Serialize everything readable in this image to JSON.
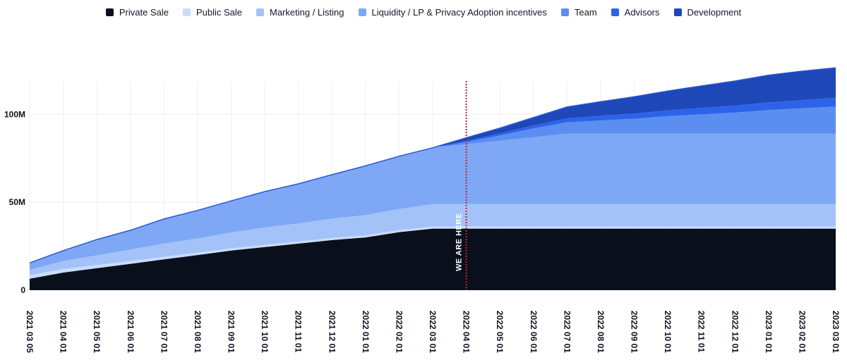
{
  "chart_data": {
    "type": "area",
    "stacked": true,
    "title": "",
    "xlabel": "",
    "ylabel": "",
    "ylim": [
      0,
      125000000
    ],
    "grid": true,
    "legend_position": "top-center",
    "y_ticks": [
      {
        "value": 0,
        "label": "0"
      },
      {
        "value": 50000000,
        "label": "50M"
      },
      {
        "value": 100000000,
        "label": "100M"
      }
    ],
    "x": [
      "2021 03 05",
      "2021 04 01",
      "2021 05 01",
      "2021 06 01",
      "2021 07 01",
      "2021 08 01",
      "2021 09 01",
      "2021 10 01",
      "2021 11 01",
      "2021 12 01",
      "2022 01 01",
      "2022 02 01",
      "2022 03 01",
      "2022 04 01",
      "2022 05 01",
      "2022 06 01",
      "2022 07 01",
      "2022 08 01",
      "2022 09 01",
      "2022 10 01",
      "2022 11 01",
      "2022 12 01",
      "2023 01 01",
      "2023 02 01",
      "2023 03 01"
    ],
    "series": [
      {
        "name": "Private Sale",
        "color": "#0a0f1c",
        "values": [
          6.5,
          10,
          12.5,
          15,
          17.5,
          20,
          22.5,
          24.5,
          26.5,
          28.5,
          30,
          33,
          35,
          35,
          35,
          35,
          35,
          35,
          35,
          35,
          35,
          35,
          35,
          35,
          35
        ]
      },
      {
        "name": "Public Sale",
        "color": "#c9dcfb",
        "values": [
          2,
          2,
          1.8,
          1.6,
          1.5,
          1.4,
          1.3,
          1.3,
          1.2,
          1.2,
          1.2,
          1.2,
          1.2,
          1.2,
          1.2,
          1.2,
          1.2,
          1.2,
          1.2,
          1.2,
          1.2,
          1.2,
          1.2,
          1.2,
          1.2
        ]
      },
      {
        "name": "Marketing / Listing",
        "color": "#a3c2f8",
        "values": [
          3,
          4.5,
          5.5,
          6.5,
          7.5,
          8,
          9,
          9.8,
          10.3,
          11,
          11.5,
          12,
          12.8,
          12.8,
          12.8,
          12.8,
          12.8,
          12.8,
          12.8,
          12.8,
          12.8,
          12.8,
          12.8,
          12.8,
          12.8
        ]
      },
      {
        "name": "Liquidity / LP & Privacy Adoption incentives",
        "color": "#7ea8f5",
        "values": [
          4,
          6,
          9,
          11,
          14,
          16,
          18,
          20.5,
          22.5,
          25,
          28,
          30,
          32,
          34,
          36,
          38,
          40,
          40,
          40,
          40,
          40,
          40,
          40,
          40,
          40
        ]
      },
      {
        "name": "Team",
        "color": "#5b8ef1",
        "values": [
          0,
          0,
          0,
          0,
          0,
          0,
          0,
          0,
          0,
          0,
          0,
          0,
          0,
          1.2,
          3,
          5,
          6.5,
          7.5,
          8.5,
          10,
          11,
          12,
          13.5,
          14.5,
          15.5
        ]
      },
      {
        "name": "Advisors",
        "color": "#2d63ea",
        "values": [
          0,
          0,
          0,
          0,
          0,
          0,
          0,
          0,
          0,
          0,
          0,
          0,
          0,
          0.7,
          1.2,
          1.7,
          2.2,
          2.7,
          3,
          3.3,
          3.7,
          4,
          4.3,
          4.6,
          5
        ]
      },
      {
        "name": "Development",
        "color": "#1e47b8",
        "values": [
          0,
          0,
          0,
          0,
          0,
          0,
          0,
          0,
          0,
          0,
          0,
          0,
          0,
          1.8,
          3,
          4.5,
          6.5,
          8,
          9.5,
          11,
          12.5,
          14,
          15.5,
          16.5,
          17
        ]
      }
    ],
    "value_unit_multiplier": 1000000,
    "annotation": {
      "label": "WE ARE HERE",
      "x": "2022 04 01",
      "color": "#c0262d"
    }
  }
}
